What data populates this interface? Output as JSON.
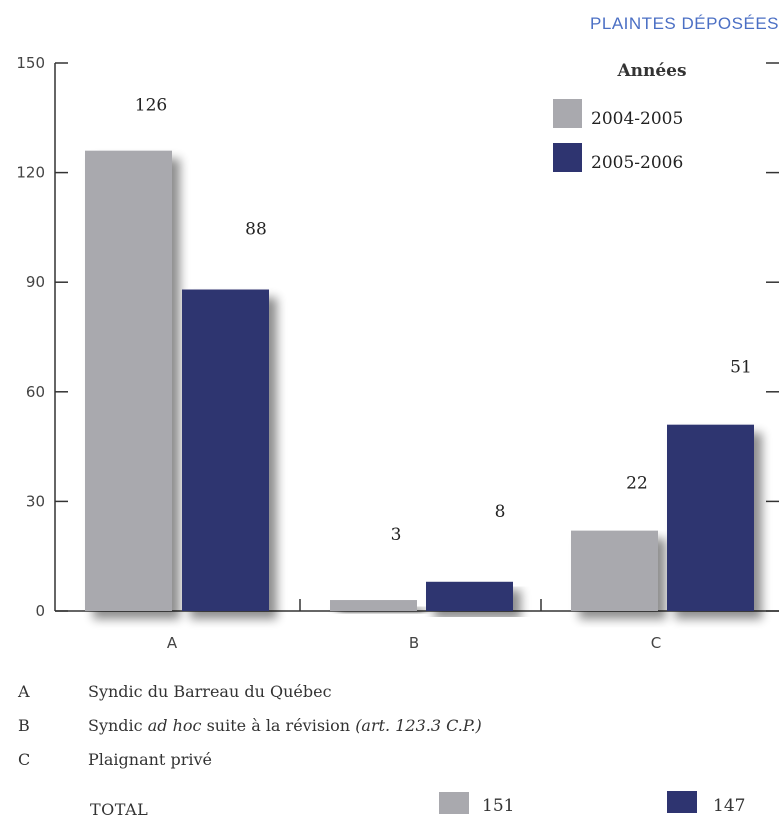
{
  "colors": {
    "series1": "#a9a9ae",
    "series2": "#2e3470",
    "header": "#4b6fc4",
    "axis": "#333333"
  },
  "header": {
    "title": "PLAINTES DÉPOSÉES"
  },
  "chart_data": {
    "type": "bar",
    "categories": [
      "A",
      "B",
      "C"
    ],
    "series": [
      {
        "name": "2004-2005",
        "values": [
          126,
          3,
          22
        ]
      },
      {
        "name": "2005-2006",
        "values": [
          88,
          8,
          51
        ]
      }
    ],
    "yticks": [
      "0",
      "30",
      "60",
      "90",
      "120",
      "150"
    ],
    "ylim": [
      0,
      150
    ],
    "legend": {
      "title": "Années",
      "position": "top-right"
    },
    "grid": false
  },
  "notes": [
    {
      "key": "A",
      "text": "Syndic du Barreau du Québec",
      "italic": ""
    },
    {
      "key": "B",
      "text": "Syndic ",
      "italic_mid": "ad hoc",
      "text_after": " suite à la révision ",
      "italic": "(art. 123.3 C.P.)"
    },
    {
      "key": "C",
      "text": "Plaignant privé",
      "italic": ""
    }
  ],
  "total": {
    "label": "TOTAL",
    "value1": "151",
    "value2": "147"
  }
}
